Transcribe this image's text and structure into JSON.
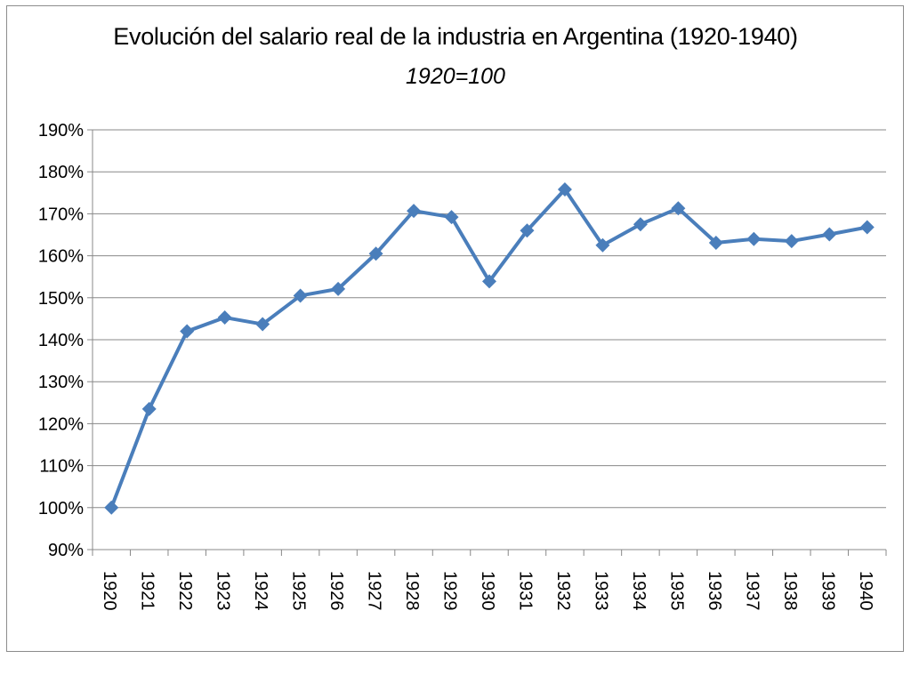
{
  "chart_data": {
    "type": "line",
    "title": "Evolución del salario real de la industria en Argentina (1920-1940)",
    "subtitle": "1920=100",
    "xlabel": "",
    "ylabel": "",
    "categories": [
      "1920",
      "1921",
      "1922",
      "1923",
      "1924",
      "1925",
      "1926",
      "1927",
      "1928",
      "1929",
      "1930",
      "1931",
      "1932",
      "1933",
      "1934",
      "1935",
      "1936",
      "1937",
      "1938",
      "1939",
      "1940"
    ],
    "series": [
      {
        "values": [
          100,
          123.5,
          142,
          145.3,
          143.7,
          150.5,
          152.1,
          160.5,
          170.7,
          169.2,
          153.9,
          166,
          175.8,
          162.5,
          167.5,
          171.3,
          163.1,
          164,
          163.5,
          165.1,
          166.8
        ]
      }
    ],
    "ylim": [
      90,
      190
    ],
    "ytick_step": 10,
    "ytick_format": "percent",
    "grid": "horizontal",
    "legend": "none",
    "series_color": "#4a7ebb",
    "gridline_color": "#888888"
  }
}
